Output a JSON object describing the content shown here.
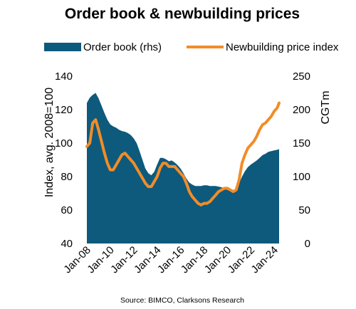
{
  "chart_data": {
    "type": "area",
    "title": "Order book & newbuilding prices",
    "source": "Source: BIMCO, Clarksons Research",
    "left_axis": {
      "label": "Index, avg. 2008=100",
      "ylim": [
        40,
        140
      ],
      "ticks": [
        "40",
        "60",
        "80",
        "100",
        "120",
        "140"
      ]
    },
    "right_axis": {
      "label": "CGTm",
      "ylim": [
        0,
        250
      ],
      "ticks": [
        "0",
        "50",
        "100",
        "150",
        "200",
        "250"
      ]
    },
    "x_axis": {
      "range": [
        "2008-01",
        "2024-06"
      ],
      "ticks": [
        "Jan-08",
        "Jan-10",
        "Jan-12",
        "Jan-14",
        "Jan-16",
        "Jan-18",
        "Jan-20",
        "Jan-22",
        "Jan-24"
      ]
    },
    "legend": {
      "placement": "top"
    },
    "grid": false,
    "series": [
      {
        "name": "Order book (rhs)",
        "type": "area",
        "axis": "right",
        "color": "#0d5a7c",
        "x": [
          "2008-01",
          "2008-04",
          "2008-07",
          "2008-10",
          "2009-01",
          "2009-04",
          "2009-07",
          "2009-10",
          "2010-01",
          "2010-04",
          "2010-07",
          "2010-10",
          "2011-01",
          "2011-04",
          "2011-07",
          "2011-10",
          "2012-01",
          "2012-04",
          "2012-07",
          "2012-10",
          "2013-01",
          "2013-04",
          "2013-07",
          "2013-10",
          "2014-01",
          "2014-04",
          "2014-07",
          "2014-10",
          "2015-01",
          "2015-04",
          "2015-07",
          "2015-10",
          "2016-01",
          "2016-04",
          "2016-07",
          "2016-10",
          "2017-01",
          "2017-04",
          "2017-07",
          "2017-10",
          "2018-01",
          "2018-04",
          "2018-07",
          "2018-10",
          "2019-01",
          "2019-04",
          "2019-07",
          "2019-10",
          "2020-01",
          "2020-04",
          "2020-07",
          "2020-10",
          "2021-01",
          "2021-04",
          "2021-07",
          "2021-10",
          "2022-01",
          "2022-04",
          "2022-07",
          "2022-10",
          "2023-01",
          "2023-04",
          "2023-07",
          "2023-10",
          "2024-01",
          "2024-04",
          "2024-06"
        ],
        "values": [
          210,
          218,
          222,
          225,
          217,
          206,
          195,
          185,
          178,
          175,
          173,
          170,
          168,
          167,
          165,
          162,
          157,
          150,
          138,
          125,
          112,
          105,
          102,
          107,
          118,
          128,
          128,
          126,
          123,
          124,
          121,
          117,
          112,
          105,
          97,
          91,
          88,
          86,
          86,
          86,
          87,
          87,
          86,
          86,
          86,
          85,
          84,
          82,
          80,
          79,
          78,
          79,
          90,
          100,
          108,
          114,
          118,
          121,
          124,
          128,
          132,
          134,
          137,
          138,
          139,
          140,
          141
        ]
      },
      {
        "name": "Newbuilding price index",
        "type": "line",
        "axis": "left",
        "color": "#f28c28",
        "x": [
          "2008-01",
          "2008-04",
          "2008-07",
          "2008-10",
          "2009-01",
          "2009-04",
          "2009-07",
          "2009-10",
          "2010-01",
          "2010-04",
          "2010-07",
          "2010-10",
          "2011-01",
          "2011-04",
          "2011-07",
          "2011-10",
          "2012-01",
          "2012-04",
          "2012-07",
          "2012-10",
          "2013-01",
          "2013-04",
          "2013-07",
          "2013-10",
          "2014-01",
          "2014-04",
          "2014-07",
          "2014-10",
          "2015-01",
          "2015-04",
          "2015-07",
          "2015-10",
          "2016-01",
          "2016-04",
          "2016-07",
          "2016-10",
          "2017-01",
          "2017-04",
          "2017-07",
          "2017-10",
          "2018-01",
          "2018-04",
          "2018-07",
          "2018-10",
          "2019-01",
          "2019-04",
          "2019-07",
          "2019-10",
          "2020-01",
          "2020-04",
          "2020-07",
          "2020-10",
          "2021-01",
          "2021-04",
          "2021-07",
          "2021-10",
          "2022-01",
          "2022-04",
          "2022-07",
          "2022-10",
          "2023-01",
          "2023-04",
          "2023-07",
          "2023-10",
          "2024-01",
          "2024-04",
          "2024-06"
        ],
        "values": [
          98,
          100,
          112,
          114,
          108,
          101,
          94,
          88,
          84,
          84,
          87,
          90,
          93,
          94,
          92,
          90,
          88,
          85,
          82,
          79,
          76,
          74,
          74,
          77,
          80,
          85,
          88,
          88,
          86,
          86,
          86,
          84,
          82,
          80,
          76,
          71,
          68,
          66,
          64,
          63,
          64,
          64,
          65,
          67,
          69,
          71,
          72,
          73,
          73,
          72,
          71,
          72,
          78,
          88,
          93,
          97,
          99,
          101,
          104,
          108,
          111,
          112,
          114,
          116,
          119,
          121,
          124
        ]
      }
    ]
  }
}
